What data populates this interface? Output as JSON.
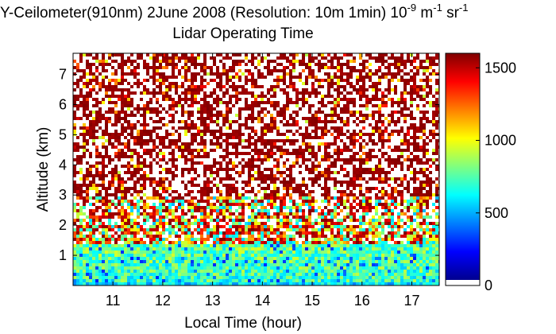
{
  "chart_data": {
    "type": "heatmap",
    "title": {
      "main": "Y-Ceilometer(910nm) 2June 2008 (Resolution: 10m 1min) 10",
      "exp1": "-9",
      "mid1": " m",
      "exp2": "-1",
      "mid2": " sr",
      "exp3": "-1"
    },
    "subtitle": "Lidar Operating Time",
    "xlabel": "Local Time (hour)",
    "ylabel": "Altitude (km)",
    "xlim": [
      10.2,
      17.55
    ],
    "ylim": [
      0,
      7.7
    ],
    "xticks": [
      11,
      12,
      13,
      14,
      15,
      16,
      17
    ],
    "yticks": [
      1,
      2,
      3,
      4,
      5,
      6,
      7
    ],
    "colorbar": {
      "colormap": "jet",
      "range": [
        0,
        1600
      ],
      "ticks": [
        0,
        500,
        1000,
        1500
      ]
    },
    "description_of_field": "Dense noisy backscatter; cyan-green-blue layer below ~1.5 km, mixed noise 1.5-3 km, saturated dark red above ~3 km"
  }
}
